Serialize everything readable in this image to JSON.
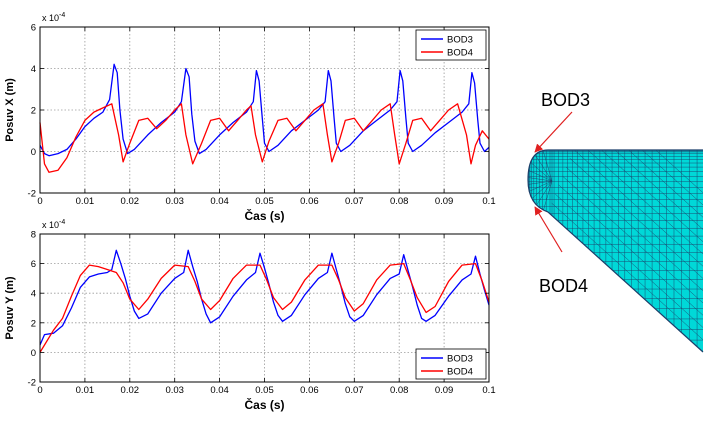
{
  "chart_data": [
    {
      "type": "line",
      "id": "top",
      "exponent_label": "x 10",
      "exponent_power": "-4",
      "xlabel": "Čas (s)",
      "ylabel": "Posuv X (m)",
      "xlim": [
        0,
        0.1
      ],
      "ylim": [
        -2,
        6
      ],
      "xticks": [
        "0",
        "0.01",
        "0.02",
        "0.03",
        "0.04",
        "0.05",
        "0.06",
        "0.07",
        "0.08",
        "0.09",
        "0.1"
      ],
      "yticks": [
        "-2",
        "0",
        "2",
        "4",
        "6"
      ],
      "grid": true,
      "legend_position": "top-right",
      "series": [
        {
          "name": "BOD3",
          "color": "#0000ff",
          "x": [
            0,
            0.001,
            0.002,
            0.004,
            0.006,
            0.008,
            0.01,
            0.012,
            0.014,
            0.0155,
            0.0165,
            0.0172,
            0.0178,
            0.0185,
            0.0195,
            0.021,
            0.024,
            0.027,
            0.03,
            0.0315,
            0.0325,
            0.0332,
            0.0338,
            0.0345,
            0.0355,
            0.037,
            0.04,
            0.043,
            0.046,
            0.0475,
            0.0482,
            0.0488,
            0.0495,
            0.05,
            0.051,
            0.053,
            0.056,
            0.059,
            0.062,
            0.0635,
            0.0642,
            0.0648,
            0.0655,
            0.066,
            0.067,
            0.069,
            0.072,
            0.075,
            0.078,
            0.0795,
            0.0802,
            0.0808,
            0.0815,
            0.082,
            0.083,
            0.085,
            0.088,
            0.091,
            0.094,
            0.0955,
            0.0962,
            0.0968,
            0.0975,
            0.098,
            0.099,
            0.1
          ],
          "y": [
            0.3,
            -0.1,
            -0.2,
            -0.1,
            0.1,
            0.6,
            1.2,
            1.6,
            1.9,
            2.5,
            4.2,
            3.8,
            2.0,
            0.6,
            -0.1,
            0.1,
            0.8,
            1.4,
            1.9,
            2.4,
            4.0,
            3.6,
            1.8,
            0.5,
            -0.1,
            0.1,
            0.8,
            1.4,
            1.9,
            2.4,
            3.9,
            3.4,
            1.6,
            0.4,
            0.0,
            0.3,
            1.0,
            1.5,
            2.0,
            2.4,
            3.9,
            3.4,
            1.6,
            0.4,
            0.0,
            0.3,
            1.0,
            1.5,
            2.0,
            2.4,
            3.9,
            3.4,
            1.6,
            0.4,
            0.0,
            0.3,
            0.9,
            1.4,
            1.9,
            2.3,
            3.8,
            3.3,
            1.5,
            0.4,
            0.0,
            0.2
          ]
        },
        {
          "name": "BOD4",
          "color": "#ff0000",
          "x": [
            0,
            0.001,
            0.002,
            0.004,
            0.006,
            0.008,
            0.01,
            0.012,
            0.014,
            0.016,
            0.0175,
            0.0185,
            0.02,
            0.022,
            0.024,
            0.026,
            0.028,
            0.03,
            0.0315,
            0.0325,
            0.034,
            0.036,
            0.038,
            0.04,
            0.042,
            0.044,
            0.046,
            0.047,
            0.048,
            0.0495,
            0.051,
            0.053,
            0.055,
            0.057,
            0.059,
            0.061,
            0.063,
            0.064,
            0.065,
            0.0665,
            0.068,
            0.07,
            0.072,
            0.074,
            0.076,
            0.078,
            0.079,
            0.08,
            0.0815,
            0.083,
            0.085,
            0.087,
            0.089,
            0.091,
            0.093,
            0.095,
            0.096,
            0.097,
            0.0985,
            0.1
          ],
          "y": [
            1.4,
            -0.6,
            -1.0,
            -0.9,
            -0.3,
            0.7,
            1.5,
            1.9,
            2.1,
            2.3,
            0.8,
            -0.5,
            0.4,
            1.5,
            1.6,
            1.1,
            1.5,
            2.0,
            2.3,
            0.8,
            -0.6,
            0.4,
            1.5,
            1.6,
            1.0,
            1.5,
            2.0,
            2.2,
            0.8,
            -0.5,
            0.5,
            1.5,
            1.6,
            1.0,
            1.5,
            2.0,
            2.3,
            0.8,
            -0.5,
            0.4,
            1.5,
            1.6,
            1.0,
            1.5,
            2.0,
            2.3,
            0.8,
            -0.6,
            0.4,
            1.5,
            1.6,
            1.0,
            1.5,
            2.0,
            2.3,
            0.8,
            -0.6,
            0.3,
            1.0,
            0.6
          ]
        }
      ]
    },
    {
      "type": "line",
      "id": "bottom",
      "exponent_label": "x 10",
      "exponent_power": "-4",
      "xlabel": "Čas (s)",
      "ylabel": "Posuv Y (m)",
      "xlim": [
        0,
        0.1
      ],
      "ylim": [
        -2,
        8
      ],
      "xticks": [
        "0",
        "0.01",
        "0.02",
        "0.03",
        "0.04",
        "0.05",
        "0.06",
        "0.07",
        "0.08",
        "0.09",
        "0.1"
      ],
      "yticks": [
        "-2",
        "0",
        "2",
        "4",
        "6",
        "8"
      ],
      "grid": true,
      "legend_position": "bottom-right",
      "series": [
        {
          "name": "BOD3",
          "color": "#0000ff",
          "x": [
            0,
            0.001,
            0.003,
            0.005,
            0.007,
            0.009,
            0.011,
            0.013,
            0.015,
            0.016,
            0.017,
            0.018,
            0.019,
            0.02,
            0.021,
            0.022,
            0.024,
            0.027,
            0.03,
            0.032,
            0.033,
            0.034,
            0.035,
            0.036,
            0.037,
            0.038,
            0.04,
            0.043,
            0.046,
            0.048,
            0.049,
            0.05,
            0.051,
            0.052,
            0.053,
            0.054,
            0.056,
            0.059,
            0.062,
            0.064,
            0.065,
            0.066,
            0.067,
            0.068,
            0.069,
            0.07,
            0.072,
            0.075,
            0.078,
            0.08,
            0.081,
            0.082,
            0.083,
            0.084,
            0.085,
            0.086,
            0.088,
            0.091,
            0.094,
            0.096,
            0.097,
            0.098,
            0.099,
            0.1
          ],
          "y": [
            0.5,
            1.2,
            1.3,
            1.8,
            3.0,
            4.4,
            5.1,
            5.3,
            5.4,
            5.6,
            6.9,
            6.0,
            5.0,
            3.8,
            2.8,
            2.3,
            2.6,
            4.0,
            5.0,
            5.4,
            6.9,
            5.8,
            4.8,
            3.6,
            2.6,
            2.0,
            2.4,
            3.8,
            4.9,
            5.4,
            6.7,
            5.7,
            4.6,
            3.4,
            2.5,
            2.1,
            2.5,
            3.9,
            5.0,
            5.4,
            6.7,
            5.6,
            4.5,
            3.3,
            2.4,
            2.1,
            2.5,
            3.9,
            5.0,
            5.3,
            6.6,
            5.5,
            4.4,
            3.2,
            2.3,
            2.1,
            2.5,
            3.8,
            4.9,
            5.3,
            6.5,
            5.3,
            4.2,
            3.2
          ]
        },
        {
          "name": "BOD4",
          "color": "#ff0000",
          "x": [
            0,
            0.001,
            0.003,
            0.005,
            0.007,
            0.009,
            0.011,
            0.013,
            0.015,
            0.017,
            0.0185,
            0.02,
            0.022,
            0.024,
            0.027,
            0.03,
            0.033,
            0.0345,
            0.036,
            0.038,
            0.04,
            0.043,
            0.046,
            0.049,
            0.0505,
            0.052,
            0.054,
            0.056,
            0.059,
            0.062,
            0.065,
            0.0665,
            0.068,
            0.07,
            0.072,
            0.075,
            0.078,
            0.081,
            0.0825,
            0.084,
            0.086,
            0.088,
            0.091,
            0.094,
            0.097,
            0.0985,
            0.1
          ],
          "y": [
            0.0,
            0.5,
            1.5,
            2.3,
            3.8,
            5.2,
            5.9,
            5.8,
            5.6,
            5.4,
            4.7,
            3.6,
            2.9,
            3.6,
            5.0,
            5.9,
            5.8,
            4.8,
            3.6,
            2.9,
            3.5,
            5.0,
            5.9,
            5.9,
            4.9,
            3.7,
            2.9,
            3.4,
            4.9,
            5.9,
            5.9,
            4.9,
            3.7,
            2.8,
            3.3,
            4.9,
            5.9,
            6.0,
            4.9,
            3.7,
            2.7,
            3.1,
            4.8,
            5.9,
            6.0,
            4.8,
            3.4
          ]
        }
      ]
    }
  ],
  "mesh": {
    "label_top": "BOD3",
    "label_bottom": "BOD4",
    "fill_color": "#00d8d8",
    "line_color": "#1b3f6a",
    "arrow_color": "#e02020"
  }
}
